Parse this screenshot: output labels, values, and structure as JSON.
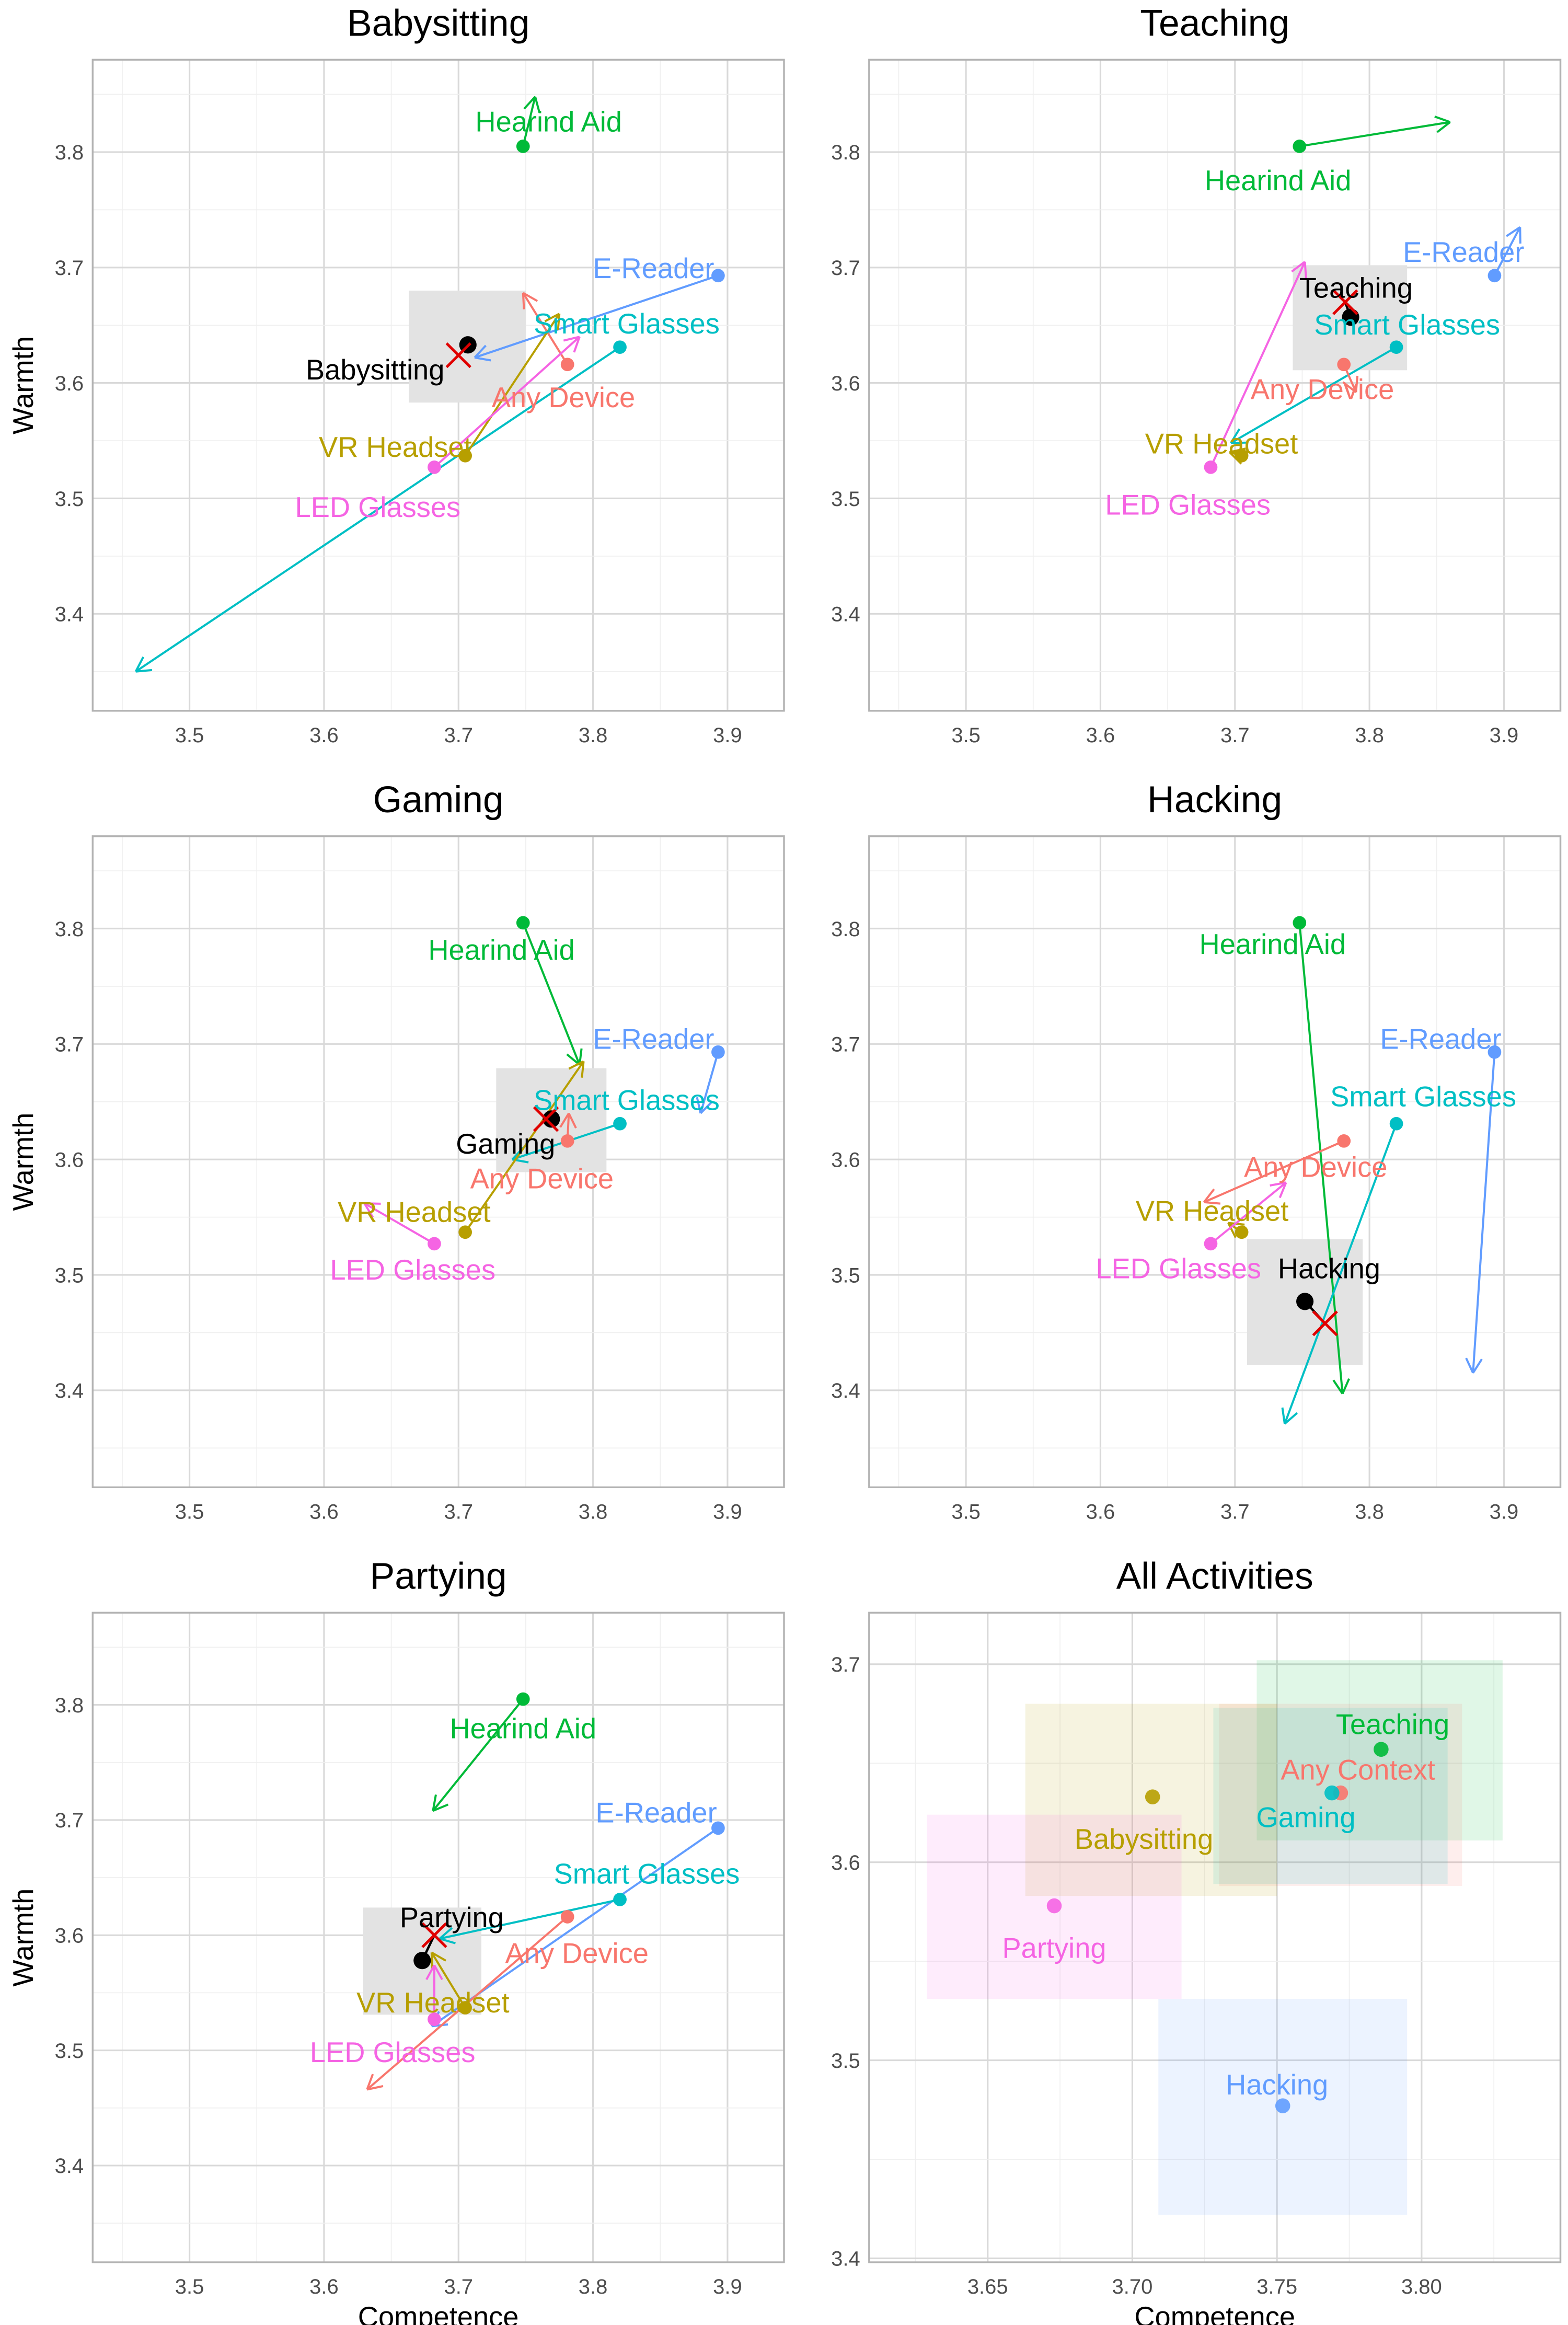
{
  "chart_data": [
    {
      "type": "scatter",
      "title": "Babysitting",
      "xlabel": "",
      "ylabel": "Warmth",
      "xlim": [
        3.428,
        3.942
      ],
      "ylim": [
        3.316,
        3.88
      ],
      "xticks": [
        "3.5",
        "3.6",
        "3.7",
        "3.8",
        "3.9"
      ],
      "yticks": [
        "3.4",
        "3.5",
        "3.6",
        "3.7",
        "3.8"
      ],
      "arrow_ends": {
        "Hearind Aid": [
          3.757,
          3.848
        ],
        "E-Reader": [
          3.712,
          3.622
        ],
        "Smart Glasses": [
          3.46,
          3.35
        ],
        "Any Device": [
          3.748,
          3.678
        ],
        "VR Headset": [
          3.775,
          3.66
        ],
        "LED Glasses": [
          3.79,
          3.64
        ]
      },
      "activity": {
        "name": "Babysitting",
        "x": 3.707,
        "y": 3.633,
        "predicted": [
          3.7,
          3.624
        ],
        "box": [
          3.663,
          3.75,
          3.583,
          3.68
        ]
      }
    },
    {
      "type": "scatter",
      "title": "Teaching",
      "xlabel": "",
      "ylabel": "",
      "xlim": [
        3.428,
        3.942
      ],
      "ylim": [
        3.316,
        3.88
      ],
      "xticks": [
        "3.5",
        "3.6",
        "3.7",
        "3.8",
        "3.9"
      ],
      "yticks": [
        "3.4",
        "3.5",
        "3.6",
        "3.7",
        "3.8"
      ],
      "arrow_ends": {
        "Hearind Aid": [
          3.86,
          3.826
        ],
        "E-Reader": [
          3.912,
          3.735
        ],
        "Smart Glasses": [
          3.697,
          3.548
        ],
        "Any Device": [
          3.79,
          3.592
        ],
        "VR Headset": [
          3.696,
          3.54
        ],
        "LED Glasses": [
          3.752,
          3.705
        ]
      },
      "activity": {
        "name": "Teaching",
        "x": 3.786,
        "y": 3.657,
        "predicted": [
          3.782,
          3.67
        ],
        "box": [
          3.743,
          3.828,
          3.611,
          3.702
        ]
      }
    },
    {
      "type": "scatter",
      "title": "Gaming",
      "xlabel": "",
      "ylabel": "Warmth",
      "xlim": [
        3.428,
        3.942
      ],
      "ylim": [
        3.316,
        3.88
      ],
      "xticks": [
        "3.5",
        "3.6",
        "3.7",
        "3.8",
        "3.9"
      ],
      "yticks": [
        "3.4",
        "3.5",
        "3.6",
        "3.7",
        "3.8"
      ],
      "arrow_ends": {
        "Hearind Aid": [
          3.79,
          3.682
        ],
        "E-Reader": [
          3.88,
          3.64
        ],
        "Smart Glasses": [
          3.74,
          3.6
        ],
        "Any Device": [
          3.782,
          3.64
        ],
        "VR Headset": [
          3.793,
          3.685
        ],
        "LED Glasses": [
          3.63,
          3.562
        ]
      },
      "activity": {
        "name": "Gaming",
        "x": 3.769,
        "y": 3.635,
        "predicted": [
          3.765,
          3.635
        ],
        "box": [
          3.728,
          3.81,
          3.589,
          3.679
        ]
      }
    },
    {
      "type": "scatter",
      "title": "Hacking",
      "xlabel": "",
      "ylabel": "",
      "xlim": [
        3.428,
        3.942
      ],
      "ylim": [
        3.316,
        3.88
      ],
      "xticks": [
        "3.5",
        "3.6",
        "3.7",
        "3.8",
        "3.9"
      ],
      "yticks": [
        "3.4",
        "3.5",
        "3.6",
        "3.7",
        "3.8"
      ],
      "arrow_ends": {
        "Hearind Aid": [
          3.78,
          3.397
        ],
        "E-Reader": [
          3.877,
          3.415
        ],
        "Smart Glasses": [
          3.737,
          3.371
        ],
        "Any Device": [
          3.677,
          3.563
        ],
        "VR Headset": [
          3.695,
          3.545
        ],
        "LED Glasses": [
          3.738,
          3.58
        ]
      },
      "activity": {
        "name": "Hacking",
        "x": 3.752,
        "y": 3.477,
        "predicted": [
          3.767,
          3.458
        ],
        "box": [
          3.709,
          3.795,
          3.422,
          3.531
        ]
      }
    },
    {
      "type": "scatter",
      "title": "Partying",
      "xlabel": "Competence",
      "ylabel": "Warmth",
      "xlim": [
        3.428,
        3.942
      ],
      "ylim": [
        3.316,
        3.88
      ],
      "xticks": [
        "3.5",
        "3.6",
        "3.7",
        "3.8",
        "3.9"
      ],
      "yticks": [
        "3.4",
        "3.5",
        "3.6",
        "3.7",
        "3.8"
      ],
      "arrow_ends": {
        "Hearind Aid": [
          3.681,
          3.708
        ],
        "E-Reader": [
          3.68,
          3.521
        ],
        "Smart Glasses": [
          3.686,
          3.597
        ],
        "Any Device": [
          3.632,
          3.466
        ],
        "VR Headset": [
          3.68,
          3.585
        ],
        "LED Glasses": [
          3.682,
          3.574
        ]
      },
      "activity": {
        "name": "Partying",
        "x": 3.673,
        "y": 3.578,
        "predicted": [
          3.682,
          3.6
        ],
        "box": [
          3.629,
          3.717,
          3.531,
          3.624
        ]
      }
    },
    {
      "type": "scatter",
      "title": "All Activities",
      "xlabel": "Competence",
      "ylabel": "",
      "xlim": [
        3.609,
        3.848
      ],
      "ylim": [
        3.398,
        3.726
      ],
      "xticks": [
        "3.65",
        "3.70",
        "3.75",
        "3.80"
      ],
      "yticks": [
        "3.4",
        "3.5",
        "3.6",
        "3.7"
      ],
      "points": [
        {
          "name": "Teaching",
          "color": "#00BA38",
          "x": 3.786,
          "y": 3.657,
          "box": [
            3.743,
            3.828,
            3.611,
            3.702
          ]
        },
        {
          "name": "Any Context",
          "color": "#F8766D",
          "x": 3.772,
          "y": 3.635,
          "box": [
            3.73,
            3.814,
            3.588,
            3.68
          ]
        },
        {
          "name": "Gaming",
          "color": "#00BFC4",
          "x": 3.769,
          "y": 3.635,
          "box": [
            3.728,
            3.809,
            3.589,
            3.678
          ]
        },
        {
          "name": "Babysitting",
          "color": "#B79F00",
          "x": 3.707,
          "y": 3.633,
          "box": [
            3.663,
            3.75,
            3.583,
            3.68
          ]
        },
        {
          "name": "Partying",
          "color": "#F564E3",
          "x": 3.673,
          "y": 3.578,
          "box": [
            3.629,
            3.717,
            3.531,
            3.624
          ]
        },
        {
          "name": "Hacking",
          "color": "#619CFF",
          "x": 3.752,
          "y": 3.477,
          "box": [
            3.709,
            3.795,
            3.422,
            3.531
          ]
        }
      ]
    }
  ],
  "devices": [
    {
      "name": "Hearind Aid",
      "color": "#00BA38",
      "x": 3.748,
      "y": 3.805
    },
    {
      "name": "E-Reader",
      "color": "#619CFF",
      "x": 3.893,
      "y": 3.693
    },
    {
      "name": "Smart Glasses",
      "color": "#00BFC4",
      "x": 3.82,
      "y": 3.631
    },
    {
      "name": "Any Device",
      "color": "#F8766D",
      "x": 3.781,
      "y": 3.616
    },
    {
      "name": "VR Headset",
      "color": "#B79F00",
      "x": 3.705,
      "y": 3.537
    },
    {
      "name": "LED Glasses",
      "color": "#F564E3",
      "x": 3.682,
      "y": 3.527
    }
  ],
  "colors": {
    "activity_point": "#000000",
    "predicted_marker": "#E00000",
    "box": "#E3E3E3"
  }
}
